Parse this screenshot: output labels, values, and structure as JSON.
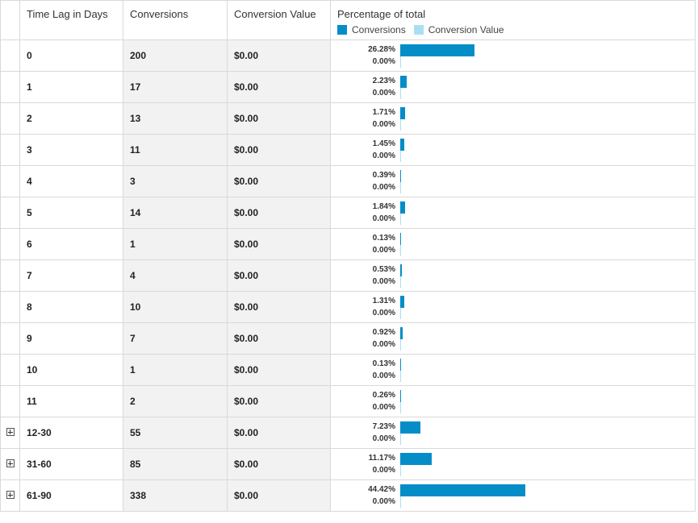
{
  "columns": {
    "time_lag": "Time Lag in Days",
    "conversions": "Conversions",
    "conversion_value": "Conversion Value",
    "percentage": "Percentage of total"
  },
  "legend": {
    "conversions": "Conversions",
    "conversion_value": "Conversion Value",
    "conversions_color": "#058dc7",
    "conversion_value_color": "#aadff3"
  },
  "rows": [
    {
      "lag": "0",
      "conversions": "200",
      "value": "$0.00",
      "pct": "26.28%",
      "pct_value": "0.00%",
      "share": 26.28,
      "expandable": false
    },
    {
      "lag": "1",
      "conversions": "17",
      "value": "$0.00",
      "pct": "2.23%",
      "pct_value": "0.00%",
      "share": 2.23,
      "expandable": false
    },
    {
      "lag": "2",
      "conversions": "13",
      "value": "$0.00",
      "pct": "1.71%",
      "pct_value": "0.00%",
      "share": 1.71,
      "expandable": false
    },
    {
      "lag": "3",
      "conversions": "11",
      "value": "$0.00",
      "pct": "1.45%",
      "pct_value": "0.00%",
      "share": 1.45,
      "expandable": false
    },
    {
      "lag": "4",
      "conversions": "3",
      "value": "$0.00",
      "pct": "0.39%",
      "pct_value": "0.00%",
      "share": 0.39,
      "expandable": false
    },
    {
      "lag": "5",
      "conversions": "14",
      "value": "$0.00",
      "pct": "1.84%",
      "pct_value": "0.00%",
      "share": 1.84,
      "expandable": false
    },
    {
      "lag": "6",
      "conversions": "1",
      "value": "$0.00",
      "pct": "0.13%",
      "pct_value": "0.00%",
      "share": 0.13,
      "expandable": false
    },
    {
      "lag": "7",
      "conversions": "4",
      "value": "$0.00",
      "pct": "0.53%",
      "pct_value": "0.00%",
      "share": 0.53,
      "expandable": false
    },
    {
      "lag": "8",
      "conversions": "10",
      "value": "$0.00",
      "pct": "1.31%",
      "pct_value": "0.00%",
      "share": 1.31,
      "expandable": false
    },
    {
      "lag": "9",
      "conversions": "7",
      "value": "$0.00",
      "pct": "0.92%",
      "pct_value": "0.00%",
      "share": 0.92,
      "expandable": false
    },
    {
      "lag": "10",
      "conversions": "1",
      "value": "$0.00",
      "pct": "0.13%",
      "pct_value": "0.00%",
      "share": 0.13,
      "expandable": false
    },
    {
      "lag": "11",
      "conversions": "2",
      "value": "$0.00",
      "pct": "0.26%",
      "pct_value": "0.00%",
      "share": 0.26,
      "expandable": false
    },
    {
      "lag": "12-30",
      "conversions": "55",
      "value": "$0.00",
      "pct": "7.23%",
      "pct_value": "0.00%",
      "share": 7.23,
      "expandable": true
    },
    {
      "lag": "31-60",
      "conversions": "85",
      "value": "$0.00",
      "pct": "11.17%",
      "pct_value": "0.00%",
      "share": 11.17,
      "expandable": true
    },
    {
      "lag": "61-90",
      "conversions": "338",
      "value": "$0.00",
      "pct": "44.42%",
      "pct_value": "0.00%",
      "share": 44.42,
      "expandable": true
    }
  ]
}
